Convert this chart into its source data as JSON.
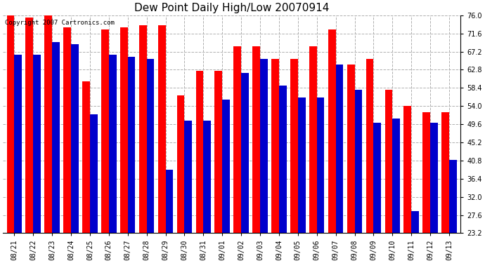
{
  "title": "Dew Point Daily High/Low 20070914",
  "copyright": "Copyright 2007 Cartronics.com",
  "categories": [
    "08/21",
    "08/22",
    "08/23",
    "08/24",
    "08/25",
    "08/26",
    "08/27",
    "08/28",
    "08/29",
    "08/30",
    "08/31",
    "09/01",
    "09/02",
    "09/03",
    "09/04",
    "09/05",
    "09/06",
    "09/07",
    "09/08",
    "09/09",
    "09/10",
    "09/11",
    "09/12",
    "09/13"
  ],
  "highs": [
    76.0,
    75.5,
    76.0,
    73.0,
    60.0,
    72.5,
    73.0,
    73.5,
    73.5,
    56.5,
    62.5,
    62.5,
    68.5,
    68.5,
    65.5,
    65.5,
    68.5,
    72.5,
    64.0,
    65.5,
    58.0,
    54.0,
    52.5,
    52.5
  ],
  "lows": [
    66.5,
    66.5,
    69.5,
    69.0,
    52.0,
    66.5,
    66.0,
    65.5,
    38.5,
    50.5,
    50.5,
    55.5,
    62.0,
    65.5,
    59.0,
    56.0,
    56.0,
    64.0,
    58.0,
    50.0,
    51.0,
    28.5,
    50.0,
    41.0
  ],
  "high_color": "#ff0000",
  "low_color": "#0000cc",
  "bg_color": "#ffffff",
  "plot_bg_color": "#ffffff",
  "grid_color": "#b0b0b0",
  "ylim_min": 23.2,
  "ylim_max": 76.0,
  "yticks": [
    23.2,
    27.6,
    32.0,
    36.4,
    40.8,
    45.2,
    49.6,
    54.0,
    58.4,
    62.8,
    67.2,
    71.6,
    76.0
  ],
  "bar_width": 0.4,
  "title_fontsize": 11,
  "tick_fontsize": 7,
  "copyright_fontsize": 6.5
}
